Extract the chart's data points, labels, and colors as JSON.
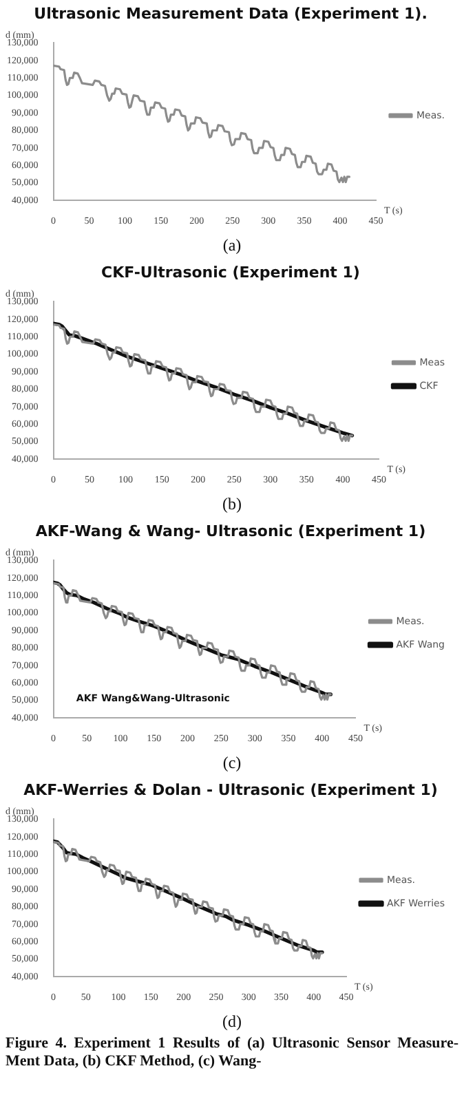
{
  "chart_data": [
    {
      "type": "line",
      "title": "Ultrasonic Measurement Data (Experiment 1).",
      "xlabel": "T (s)",
      "ylabel": "d (mm)",
      "xlim": [
        0,
        450
      ],
      "xticks": [
        0,
        50,
        100,
        150,
        200,
        250,
        300,
        350,
        400,
        450
      ],
      "ylim": [
        40000,
        130000
      ],
      "yticks": [
        {
          "value": 40000,
          "label": "40,000"
        },
        {
          "value": 50000,
          "label": "50,000"
        },
        {
          "value": 60000,
          "label": "60,000"
        },
        {
          "value": 70000,
          "label": "70,000"
        },
        {
          "value": 80000,
          "label": "80,000"
        },
        {
          "value": 90000,
          "label": "90,000"
        },
        {
          "value": 100000,
          "label": "100,000"
        },
        {
          "value": 110000,
          "label": "110,000"
        },
        {
          "value": 120000,
          "label": "120,000"
        },
        {
          "value": 130000,
          "label": "130,000"
        }
      ],
      "grid": false,
      "legend": "right",
      "annotations": [
        "(a)"
      ],
      "series": [
        {
          "name": "Meas.",
          "color": "#8c8c8c",
          "x": [
            0,
            8,
            10,
            15,
            17,
            19,
            21,
            23,
            27,
            29,
            34,
            37,
            40,
            55,
            58,
            64,
            67,
            72,
            75,
            78,
            80,
            82,
            85,
            87,
            93,
            96,
            102,
            104,
            106,
            108,
            110,
            112,
            118,
            121,
            127,
            129,
            131,
            134,
            136,
            140,
            142,
            148,
            151,
            156,
            158,
            160,
            162,
            164,
            168,
            170,
            176,
            179,
            184,
            186,
            188,
            190,
            192,
            197,
            199,
            205,
            208,
            214,
            216,
            218,
            220,
            222,
            228,
            230,
            236,
            239,
            245,
            247,
            249,
            252,
            254,
            260,
            262,
            268,
            271,
            276,
            278,
            280,
            285,
            287,
            292,
            294,
            300,
            303,
            307,
            309,
            311,
            316,
            318,
            322,
            324,
            330,
            333,
            337,
            339,
            341,
            345,
            347,
            351,
            353,
            359,
            362,
            366,
            368,
            370,
            375,
            377,
            381,
            383,
            388,
            391,
            395,
            397,
            399,
            402,
            404,
            406,
            408,
            410,
            413
          ],
          "values": [
            117000,
            116500,
            115000,
            114500,
            109000,
            106000,
            106500,
            110000,
            110000,
            113000,
            112500,
            110000,
            107000,
            106000,
            108500,
            108000,
            106000,
            105500,
            100000,
            97000,
            98000,
            101000,
            101000,
            104000,
            103500,
            101000,
            100500,
            96000,
            93000,
            93500,
            97000,
            100000,
            99500,
            97000,
            96500,
            92000,
            89000,
            89000,
            93000,
            93000,
            96000,
            95500,
            93000,
            92500,
            88000,
            85000,
            85500,
            89000,
            89000,
            92000,
            91500,
            88500,
            88000,
            83000,
            80000,
            81000,
            84000,
            84000,
            87500,
            87000,
            84500,
            84000,
            79000,
            76000,
            76500,
            80000,
            80000,
            83000,
            82500,
            79500,
            79000,
            74000,
            71500,
            72000,
            75000,
            75000,
            78500,
            78000,
            75000,
            74500,
            69500,
            67000,
            67000,
            70000,
            70000,
            74000,
            73500,
            70500,
            70000,
            65500,
            63000,
            63000,
            66000,
            66000,
            70000,
            69500,
            66500,
            66000,
            61500,
            59000,
            59000,
            62000,
            62000,
            65500,
            65000,
            61500,
            61000,
            56500,
            55000,
            55000,
            57500,
            57500,
            61000,
            60500,
            57000,
            56500,
            52000,
            50500,
            53000,
            50500,
            53500,
            50500,
            53500,
            53500
          ]
        }
      ]
    },
    {
      "type": "line",
      "title": "CKF-Ultrasonic (Experiment 1)",
      "xlabel": "T (s)",
      "ylabel": "d (mm)",
      "xlim": [
        0,
        450
      ],
      "xticks": [
        0,
        50,
        100,
        150,
        200,
        250,
        300,
        350,
        400,
        450
      ],
      "ylim": [
        40000,
        130000
      ],
      "yticks": [
        {
          "value": 40000,
          "label": "40,000"
        },
        {
          "value": 50000,
          "label": "50,000"
        },
        {
          "value": 60000,
          "label": "60,000"
        },
        {
          "value": 70000,
          "label": "70,000"
        },
        {
          "value": 80000,
          "label": "80,000"
        },
        {
          "value": 90000,
          "label": "90,000"
        },
        {
          "value": 100000,
          "label": "100,000"
        },
        {
          "value": 110000,
          "label": "110,000"
        },
        {
          "value": 120000,
          "label": "120,000"
        },
        {
          "value": 130000,
          "label": "130,000"
        }
      ],
      "grid": false,
      "legend": "right",
      "annotations": [
        "(b)"
      ],
      "series": [
        {
          "name": "Meas",
          "color": "#8c8c8c",
          "x": [
            0,
            8,
            10,
            15,
            17,
            19,
            21,
            23,
            27,
            29,
            34,
            37,
            40,
            55,
            58,
            64,
            67,
            72,
            75,
            78,
            80,
            82,
            85,
            87,
            93,
            96,
            102,
            104,
            106,
            108,
            110,
            112,
            118,
            121,
            127,
            129,
            131,
            134,
            136,
            140,
            142,
            148,
            151,
            156,
            158,
            160,
            162,
            164,
            168,
            170,
            176,
            179,
            184,
            186,
            188,
            190,
            192,
            197,
            199,
            205,
            208,
            214,
            216,
            218,
            220,
            222,
            228,
            230,
            236,
            239,
            245,
            247,
            249,
            252,
            254,
            260,
            262,
            268,
            271,
            276,
            278,
            280,
            285,
            287,
            292,
            294,
            300,
            303,
            307,
            309,
            311,
            316,
            318,
            322,
            324,
            330,
            333,
            337,
            339,
            341,
            345,
            347,
            351,
            353,
            359,
            362,
            366,
            368,
            370,
            375,
            377,
            381,
            383,
            388,
            391,
            395,
            397,
            399,
            402,
            404,
            406,
            408,
            410,
            413
          ],
          "values": [
            117000,
            116500,
            115000,
            114500,
            109000,
            106000,
            106500,
            110000,
            110000,
            113000,
            112500,
            110000,
            107000,
            106000,
            108500,
            108000,
            106000,
            105500,
            100000,
            97000,
            98000,
            101000,
            101000,
            104000,
            103500,
            101000,
            100500,
            96000,
            93000,
            93500,
            97000,
            100000,
            99500,
            97000,
            96500,
            92000,
            89000,
            89000,
            93000,
            93000,
            96000,
            95500,
            93000,
            92500,
            88000,
            85000,
            85500,
            89000,
            89000,
            92000,
            91500,
            88500,
            88000,
            83000,
            80000,
            81000,
            84000,
            84000,
            87500,
            87000,
            84500,
            84000,
            79000,
            76000,
            76500,
            80000,
            80000,
            83000,
            82500,
            79500,
            79000,
            74000,
            71500,
            72000,
            75000,
            75000,
            78500,
            78000,
            75000,
            74500,
            69500,
            67000,
            67000,
            70000,
            70000,
            74000,
            73500,
            70500,
            70000,
            65500,
            63000,
            63000,
            66000,
            66000,
            70000,
            69500,
            66500,
            66000,
            61500,
            59000,
            59000,
            62000,
            62000,
            65500,
            65000,
            61500,
            61000,
            56500,
            55000,
            55000,
            57500,
            57500,
            61000,
            60500,
            57000,
            56500,
            52000,
            50500,
            53000,
            50500,
            53500,
            50500,
            53500,
            53500
          ]
        },
        {
          "name": "CKF",
          "color": "#111111",
          "x": [
            0,
            8,
            12,
            16,
            22,
            30,
            40,
            60,
            80,
            100,
            125,
            150,
            175,
            200,
            225,
            250,
            275,
            300,
            325,
            350,
            375,
            400,
            413
          ],
          "values": [
            117500,
            117000,
            116000,
            114000,
            111000,
            110500,
            109000,
            106000,
            102500,
            99000,
            95500,
            92000,
            88500,
            84500,
            81000,
            77000,
            73500,
            69500,
            66000,
            62000,
            58500,
            55000,
            53500
          ]
        }
      ]
    },
    {
      "type": "line",
      "title": "AKF-Wang & Wang- Ultrasonic (Experiment 1)",
      "xlabel": "T (s)",
      "ylabel": "d (mm)",
      "xlim": [
        0,
        450
      ],
      "xticks": [
        0,
        50,
        100,
        150,
        200,
        250,
        300,
        350,
        400,
        450
      ],
      "ylim": [
        40000,
        130000
      ],
      "yticks": [
        {
          "value": 40000,
          "label": "40,000"
        },
        {
          "value": 50000,
          "label": "50,000"
        },
        {
          "value": 60000,
          "label": "60,000"
        },
        {
          "value": 70000,
          "label": "70,000"
        },
        {
          "value": 80000,
          "label": "80,000"
        },
        {
          "value": 90000,
          "label": "90,000"
        },
        {
          "value": 100000,
          "label": "100,000"
        },
        {
          "value": 110000,
          "label": "110,000"
        },
        {
          "value": 120000,
          "label": "120,000"
        },
        {
          "value": 130000,
          "label": "130,000"
        }
      ],
      "grid": false,
      "legend": "right",
      "annotations": [
        "(c)",
        "AKF Wang&Wang-Ultrasonic"
      ],
      "series": [
        {
          "name": "Meas.",
          "color": "#8c8c8c",
          "x": [
            0,
            8,
            10,
            15,
            17,
            19,
            21,
            23,
            27,
            29,
            34,
            37,
            40,
            55,
            58,
            64,
            67,
            72,
            75,
            78,
            80,
            82,
            85,
            87,
            93,
            96,
            102,
            104,
            106,
            108,
            110,
            112,
            118,
            121,
            127,
            129,
            131,
            134,
            136,
            140,
            142,
            148,
            151,
            156,
            158,
            160,
            162,
            164,
            168,
            170,
            176,
            179,
            184,
            186,
            188,
            190,
            192,
            197,
            199,
            205,
            208,
            214,
            216,
            218,
            220,
            222,
            228,
            230,
            236,
            239,
            245,
            247,
            249,
            252,
            254,
            260,
            262,
            268,
            271,
            276,
            278,
            280,
            285,
            287,
            292,
            294,
            300,
            303,
            307,
            309,
            311,
            316,
            318,
            322,
            324,
            330,
            333,
            337,
            339,
            341,
            345,
            347,
            351,
            353,
            359,
            362,
            366,
            368,
            370,
            375,
            377,
            381,
            383,
            388,
            391,
            395,
            397,
            399,
            402,
            404,
            406,
            408,
            410,
            413
          ],
          "values": [
            117000,
            116500,
            115000,
            114500,
            109000,
            106000,
            106500,
            110000,
            110000,
            113000,
            112500,
            110000,
            107000,
            106000,
            108500,
            108000,
            106000,
            105500,
            100000,
            97000,
            98000,
            101000,
            101000,
            104000,
            103500,
            101000,
            100500,
            96000,
            93000,
            93500,
            97000,
            100000,
            99500,
            97000,
            96500,
            92000,
            89000,
            89000,
            93000,
            93000,
            96000,
            95500,
            93000,
            92500,
            88000,
            85000,
            85500,
            89000,
            89000,
            92000,
            91500,
            88500,
            88000,
            83000,
            80000,
            81000,
            84000,
            84000,
            87500,
            87000,
            84500,
            84000,
            79000,
            76000,
            76500,
            80000,
            80000,
            83000,
            82500,
            79500,
            79000,
            74000,
            71500,
            72000,
            75000,
            75000,
            78500,
            78000,
            75000,
            74500,
            69500,
            67000,
            67000,
            70000,
            70000,
            74000,
            73500,
            70500,
            70000,
            65500,
            63000,
            63000,
            66000,
            66000,
            70000,
            69500,
            66500,
            66000,
            61500,
            59000,
            59000,
            62000,
            62000,
            65500,
            65000,
            61500,
            61000,
            56500,
            55000,
            55000,
            57500,
            57500,
            61000,
            60500,
            57000,
            56500,
            52000,
            50500,
            53000,
            50500,
            53500,
            50500,
            53500,
            53500
          ]
        },
        {
          "name": "AKF Wang",
          "color": "#111111",
          "x": [
            0,
            6,
            10,
            15,
            20,
            25,
            35,
            45,
            60,
            80,
            100,
            110,
            125,
            150,
            175,
            200,
            225,
            250,
            260,
            275,
            300,
            325,
            350,
            375,
            400,
            405,
            413
          ],
          "values": [
            117500,
            117000,
            116000,
            113500,
            111500,
            110500,
            110000,
            108000,
            106000,
            102500,
            99500,
            97500,
            95500,
            92500,
            88500,
            84000,
            80000,
            76000,
            75000,
            73500,
            69500,
            66000,
            62000,
            58000,
            54500,
            53500,
            53500
          ]
        }
      ]
    },
    {
      "type": "line",
      "title": "AKF-Werries & Dolan - Ultrasonic (Experiment 1)",
      "xlabel": "T (s)",
      "ylabel": "d (mm)",
      "xlim": [
        0,
        450
      ],
      "xticks": [
        0,
        50,
        100,
        150,
        200,
        250,
        300,
        350,
        400,
        450
      ],
      "ylim": [
        40000,
        130000
      ],
      "yticks": [
        {
          "value": 40000,
          "label": "40,000"
        },
        {
          "value": 50000,
          "label": "50,000"
        },
        {
          "value": 60000,
          "label": "60,000"
        },
        {
          "value": 70000,
          "label": "70,000"
        },
        {
          "value": 80000,
          "label": "80,000"
        },
        {
          "value": 90000,
          "label": "90,000"
        },
        {
          "value": 100000,
          "label": "100,000"
        },
        {
          "value": 110000,
          "label": "110,000"
        },
        {
          "value": 120000,
          "label": "120,000"
        },
        {
          "value": 130000,
          "label": "130,000"
        }
      ],
      "grid": false,
      "legend": "right",
      "annotations": [
        "(d)",
        "Figure 4. Experiment 1 Results of (a) Ultrasonic Sensor Measure-Ment Data, (b) CKF Method, (c) Wang-"
      ],
      "series": [
        {
          "name": "Meas.",
          "color": "#8c8c8c",
          "x": [
            0,
            8,
            10,
            15,
            17,
            19,
            21,
            23,
            27,
            29,
            34,
            37,
            40,
            55,
            58,
            64,
            67,
            72,
            75,
            78,
            80,
            82,
            85,
            87,
            93,
            96,
            102,
            104,
            106,
            108,
            110,
            112,
            118,
            121,
            127,
            129,
            131,
            134,
            136,
            140,
            142,
            148,
            151,
            156,
            158,
            160,
            162,
            164,
            168,
            170,
            176,
            179,
            184,
            186,
            188,
            190,
            192,
            197,
            199,
            205,
            208,
            214,
            216,
            218,
            220,
            222,
            228,
            230,
            236,
            239,
            245,
            247,
            249,
            252,
            254,
            260,
            262,
            268,
            271,
            276,
            278,
            280,
            285,
            287,
            292,
            294,
            300,
            303,
            307,
            309,
            311,
            316,
            318,
            322,
            324,
            330,
            333,
            337,
            339,
            341,
            345,
            347,
            351,
            353,
            359,
            362,
            366,
            368,
            370,
            375,
            377,
            381,
            383,
            388,
            391,
            395,
            397,
            399,
            402,
            404,
            406,
            408,
            410,
            413
          ],
          "values": [
            117000,
            116500,
            115000,
            114500,
            109000,
            106000,
            106500,
            110000,
            110000,
            113000,
            112500,
            110000,
            107000,
            106000,
            108500,
            108000,
            106000,
            105500,
            100000,
            97000,
            98000,
            101000,
            101000,
            104000,
            103500,
            101000,
            100500,
            96000,
            93000,
            93500,
            97000,
            100000,
            99500,
            97000,
            96500,
            92000,
            89000,
            89000,
            93000,
            93000,
            96000,
            95500,
            93000,
            92500,
            88000,
            85000,
            85500,
            89000,
            89000,
            92000,
            91500,
            88500,
            88000,
            83000,
            80000,
            81000,
            84000,
            84000,
            87500,
            87000,
            84500,
            84000,
            79000,
            76000,
            76500,
            80000,
            80000,
            83000,
            82500,
            79500,
            79000,
            74000,
            71500,
            72000,
            75000,
            75000,
            78500,
            78000,
            75000,
            74500,
            69500,
            67000,
            67000,
            70000,
            70000,
            74000,
            73500,
            70500,
            70000,
            65500,
            63000,
            63000,
            66000,
            66000,
            70000,
            69500,
            66500,
            66000,
            61500,
            59000,
            59000,
            62000,
            62000,
            65500,
            65000,
            61500,
            61000,
            56500,
            55000,
            55000,
            57500,
            57500,
            61000,
            60500,
            57000,
            56500,
            52000,
            50500,
            53000,
            50500,
            53500,
            50500,
            53500,
            53500
          ]
        },
        {
          "name": "AKF Werries",
          "color": "#111111",
          "x": [
            0,
            6,
            10,
            15,
            20,
            25,
            35,
            45,
            60,
            80,
            100,
            110,
            125,
            150,
            175,
            200,
            225,
            250,
            265,
            275,
            300,
            325,
            350,
            375,
            400,
            405,
            413
          ],
          "values": [
            117500,
            117000,
            115500,
            113500,
            111000,
            110500,
            110000,
            108000,
            105500,
            102000,
            98500,
            96500,
            95000,
            92500,
            88500,
            84500,
            80000,
            76000,
            74500,
            72500,
            69500,
            66000,
            62000,
            58000,
            55000,
            54000,
            54000
          ]
        }
      ]
    }
  ]
}
